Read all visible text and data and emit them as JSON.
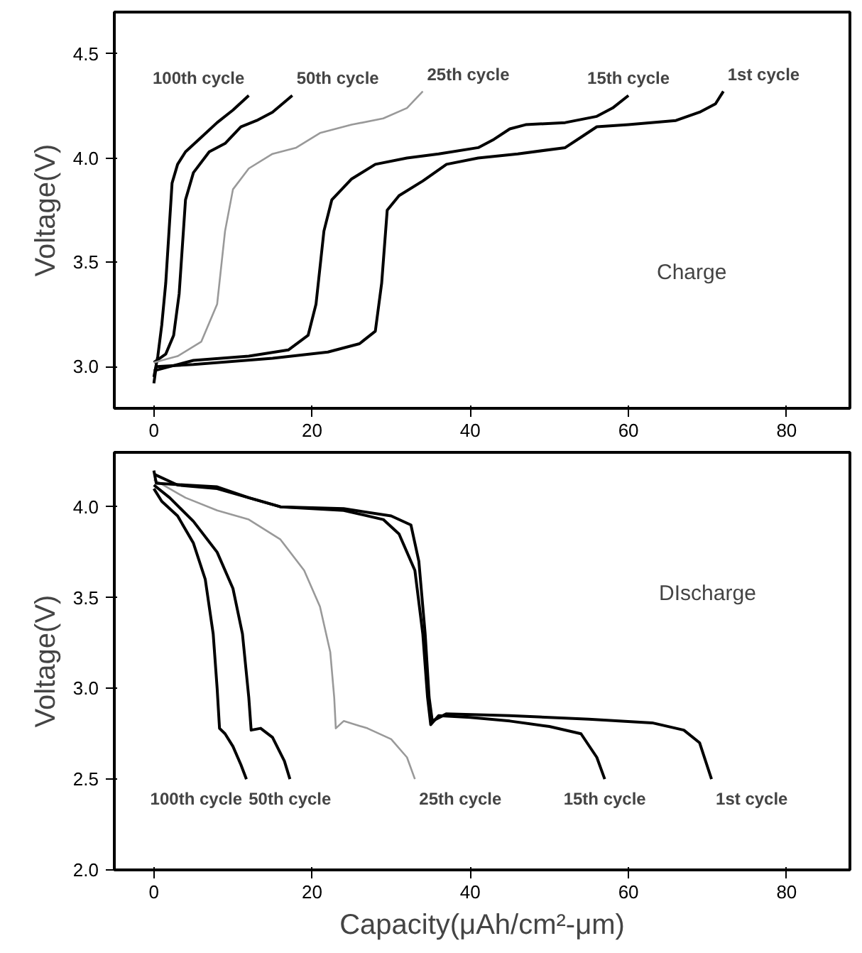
{
  "chart_data": [
    {
      "type": "line",
      "ylabel": "Voltage(V)",
      "xlim": [
        -5,
        88
      ],
      "ylim": [
        2.8,
        4.7
      ],
      "xticks": [
        0,
        20,
        40,
        60,
        80
      ],
      "yticks": [
        {
          "value": 3.0,
          "label": "3.0"
        },
        {
          "value": 3.5,
          "label": "3.5"
        },
        {
          "value": 4.0,
          "label": "4.0"
        },
        {
          "value": 4.5,
          "label": "4.5"
        }
      ],
      "line_style": "solid",
      "series": [
        {
          "name": "100th cycle",
          "color": "#000000",
          "x": [
            0,
            0.5,
            1,
            1.5,
            2.3,
            3,
            4,
            6,
            8,
            10,
            12
          ],
          "values": [
            2.95,
            3.05,
            3.2,
            3.4,
            3.88,
            3.97,
            4.03,
            4.1,
            4.17,
            4.23,
            4.3
          ]
        },
        {
          "name": "50th cycle",
          "color": "#000000",
          "x": [
            0,
            1.5,
            2.5,
            3.2,
            4,
            5,
            7,
            9,
            11,
            13,
            15,
            17.5
          ],
          "values": [
            3.02,
            3.06,
            3.15,
            3.35,
            3.8,
            3.93,
            4.03,
            4.07,
            4.15,
            4.18,
            4.22,
            4.3
          ]
        },
        {
          "name": "25th cycle",
          "color": "#999999",
          "x": [
            0,
            3,
            6,
            8,
            9,
            10,
            12,
            15,
            18,
            21,
            25,
            29,
            32,
            34
          ],
          "values": [
            3.02,
            3.05,
            3.12,
            3.3,
            3.65,
            3.85,
            3.95,
            4.02,
            4.05,
            4.12,
            4.16,
            4.19,
            4.24,
            4.32
          ]
        },
        {
          "name": "15th cycle",
          "color": "#000000",
          "x": [
            0,
            5,
            12,
            17,
            19.5,
            20.5,
            21.5,
            22.5,
            25,
            28,
            32,
            36,
            41,
            43,
            45,
            47,
            52,
            56,
            58,
            60
          ],
          "values": [
            2.98,
            3.03,
            3.05,
            3.08,
            3.15,
            3.3,
            3.65,
            3.8,
            3.9,
            3.97,
            4.0,
            4.02,
            4.05,
            4.09,
            4.14,
            4.16,
            4.17,
            4.2,
            4.24,
            4.3
          ]
        },
        {
          "name": "1st cycle",
          "color": "#000000",
          "x": [
            0,
            0.3,
            5,
            15,
            22,
            26,
            28,
            28.8,
            29.5,
            31,
            34,
            37,
            41,
            46,
            52,
            54,
            56,
            60,
            66,
            69,
            71,
            72
          ],
          "values": [
            2.92,
            3.0,
            3.01,
            3.04,
            3.07,
            3.11,
            3.17,
            3.4,
            3.75,
            3.82,
            3.89,
            3.97,
            4.0,
            4.02,
            4.05,
            4.1,
            4.15,
            4.16,
            4.18,
            4.22,
            4.26,
            4.32
          ]
        }
      ],
      "annotations": [
        "Charge"
      ]
    },
    {
      "type": "line",
      "xlabel": "Capacity(μAh/cm²-μm)",
      "ylabel": "Voltage(V)",
      "xlim": [
        -5,
        88
      ],
      "ylim": [
        2.0,
        4.3
      ],
      "xticks": [
        0,
        20,
        40,
        60,
        80
      ],
      "yticks": [
        {
          "value": 2.0,
          "label": "2.0"
        },
        {
          "value": 2.5,
          "label": "2.5"
        },
        {
          "value": 3.0,
          "label": "3.0"
        },
        {
          "value": 3.5,
          "label": "3.5"
        },
        {
          "value": 4.0,
          "label": "4.0"
        }
      ],
      "line_style": "solid",
      "series": [
        {
          "name": "100th cycle",
          "color": "#000000",
          "x": [
            0,
            1,
            3,
            5,
            6.5,
            7.5,
            8,
            8.3,
            9,
            10,
            11,
            11.7
          ],
          "values": [
            4.1,
            4.03,
            3.95,
            3.8,
            3.6,
            3.3,
            3.0,
            2.78,
            2.75,
            2.68,
            2.58,
            2.5
          ]
        },
        {
          "name": "50th cycle",
          "color": "#000000",
          "x": [
            0,
            2,
            5,
            8,
            10,
            11.2,
            12,
            12.3,
            13.5,
            15,
            16.5,
            17.2
          ],
          "values": [
            4.12,
            4.05,
            3.92,
            3.75,
            3.55,
            3.3,
            2.95,
            2.77,
            2.78,
            2.73,
            2.6,
            2.5
          ]
        },
        {
          "name": "25th cycle",
          "color": "#999999",
          "x": [
            0,
            4,
            8,
            12,
            16,
            19,
            21,
            22.3,
            22.8,
            23,
            24,
            27,
            30,
            32,
            33
          ],
          "values": [
            4.15,
            4.05,
            3.98,
            3.93,
            3.82,
            3.65,
            3.45,
            3.2,
            2.95,
            2.78,
            2.82,
            2.78,
            2.72,
            2.62,
            2.5
          ]
        },
        {
          "name": "15th cycle",
          "color": "#000000",
          "x": [
            0,
            3,
            8,
            12,
            16,
            24,
            29,
            31,
            33,
            34,
            34.6,
            35,
            36,
            40,
            45,
            50,
            54,
            56,
            57
          ],
          "values": [
            4.18,
            4.12,
            4.1,
            4.05,
            4.0,
            3.98,
            3.93,
            3.85,
            3.65,
            3.3,
            2.95,
            2.8,
            2.85,
            2.84,
            2.82,
            2.79,
            2.75,
            2.62,
            2.5
          ]
        },
        {
          "name": "1st cycle",
          "color": "#000000",
          "x": [
            0,
            0.3,
            4,
            8,
            12,
            16,
            24,
            30,
            32.5,
            33.5,
            34.3,
            34.8,
            35.2,
            37,
            45,
            55,
            63,
            67,
            69,
            70.5
          ],
          "values": [
            4.2,
            4.13,
            4.12,
            4.11,
            4.05,
            4.0,
            3.99,
            3.95,
            3.9,
            3.7,
            3.3,
            2.95,
            2.82,
            2.86,
            2.85,
            2.83,
            2.81,
            2.77,
            2.7,
            2.5
          ]
        }
      ],
      "annotations": [
        "DIscharge"
      ]
    }
  ]
}
